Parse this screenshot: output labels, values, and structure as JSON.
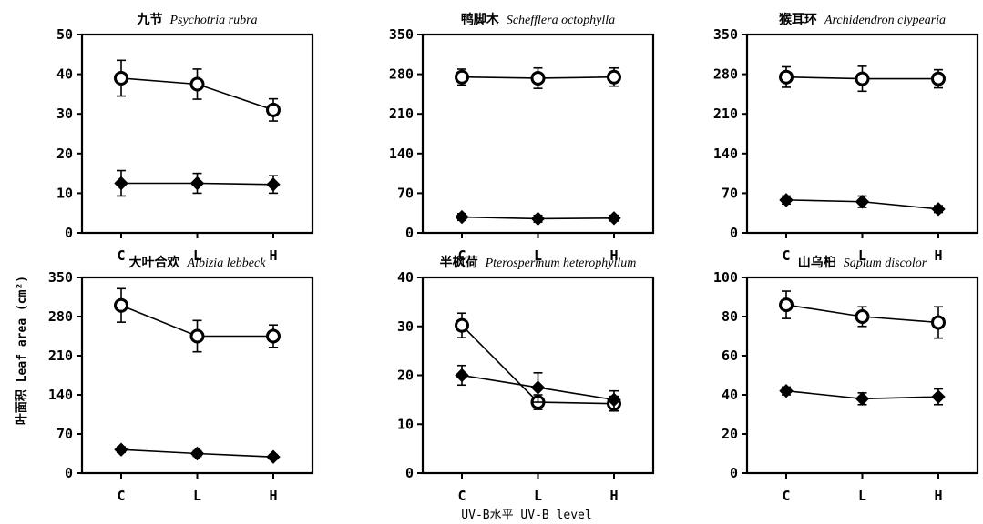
{
  "figure": {
    "ylabel": "叶面积 Leaf area (cm²)",
    "xlabel": "UV-B水平 UV-B level"
  },
  "chart_data": [
    {
      "type": "line",
      "title_cn": "九节",
      "title_latin": "Psychotria rubra",
      "categories": [
        "C",
        "L",
        "H"
      ],
      "ylim": [
        0,
        50
      ],
      "yticks": [
        "0",
        "10",
        "20",
        "30",
        "40",
        "50"
      ],
      "series": [
        {
          "marker": "open-circle",
          "values": [
            39,
            37.5,
            31
          ],
          "errors": [
            4.5,
            3.8,
            2.8
          ]
        },
        {
          "marker": "filled-diamond",
          "values": [
            12.5,
            12.5,
            12.2
          ],
          "errors": [
            3.2,
            2.5,
            2.2
          ]
        }
      ]
    },
    {
      "type": "line",
      "title_cn": "鸭脚木",
      "title_latin": "Schefflera octophylla",
      "categories": [
        "C",
        "L",
        "H"
      ],
      "ylim": [
        0,
        350
      ],
      "yticks": [
        "0",
        "70",
        "140",
        "210",
        "280",
        "350"
      ],
      "series": [
        {
          "marker": "open-circle",
          "values": [
            275,
            273,
            275
          ],
          "errors": [
            14,
            18,
            16
          ]
        },
        {
          "marker": "filled-diamond",
          "values": [
            28,
            25,
            26
          ],
          "errors": [
            6,
            6,
            5
          ]
        }
      ]
    },
    {
      "type": "line",
      "title_cn": "猴耳环",
      "title_latin": "Archidendron clypearia",
      "categories": [
        "C",
        "L",
        "H"
      ],
      "ylim": [
        0,
        350
      ],
      "yticks": [
        "0",
        "70",
        "140",
        "210",
        "280",
        "350"
      ],
      "series": [
        {
          "marker": "open-circle",
          "values": [
            275,
            272,
            272
          ],
          "errors": [
            18,
            22,
            16
          ]
        },
        {
          "marker": "filled-diamond",
          "values": [
            58,
            55,
            42
          ],
          "errors": [
            7,
            10,
            6
          ]
        }
      ]
    },
    {
      "type": "line",
      "title_cn": "大叶合欢",
      "title_latin": "Albizia lebbeck",
      "categories": [
        "C",
        "L",
        "H"
      ],
      "ylim": [
        0,
        350
      ],
      "yticks": [
        "0",
        "70",
        "140",
        "210",
        "280",
        "350"
      ],
      "series": [
        {
          "marker": "open-circle",
          "values": [
            300,
            245,
            245
          ],
          "errors": [
            30,
            28,
            20
          ]
        },
        {
          "marker": "filled-diamond",
          "values": [
            42,
            35,
            29
          ],
          "errors": [
            5,
            5,
            4
          ]
        }
      ]
    },
    {
      "type": "line",
      "title_cn": "半枫荷",
      "title_latin": "Pterospermum heterophyllum",
      "categories": [
        "C",
        "L",
        "H"
      ],
      "ylim": [
        0,
        40
      ],
      "yticks": [
        "0",
        "10",
        "20",
        "30",
        "40"
      ],
      "series": [
        {
          "marker": "open-circle",
          "values": [
            30.2,
            14.5,
            14.2
          ],
          "errors": [
            2.5,
            1.5,
            1.5
          ]
        },
        {
          "marker": "filled-diamond",
          "values": [
            20,
            17.5,
            15
          ],
          "errors": [
            2,
            3,
            1.8
          ]
        }
      ]
    },
    {
      "type": "line",
      "title_cn": "山乌桕",
      "title_latin": "Sapium discolor",
      "categories": [
        "C",
        "L",
        "H"
      ],
      "ylim": [
        0,
        100
      ],
      "yticks": [
        "0",
        "20",
        "40",
        "60",
        "80",
        "100"
      ],
      "series": [
        {
          "marker": "open-circle",
          "values": [
            86,
            80,
            77
          ],
          "errors": [
            7,
            5,
            8
          ]
        },
        {
          "marker": "filled-diamond",
          "values": [
            42,
            38,
            39
          ],
          "errors": [
            2,
            3,
            4
          ]
        }
      ]
    }
  ]
}
